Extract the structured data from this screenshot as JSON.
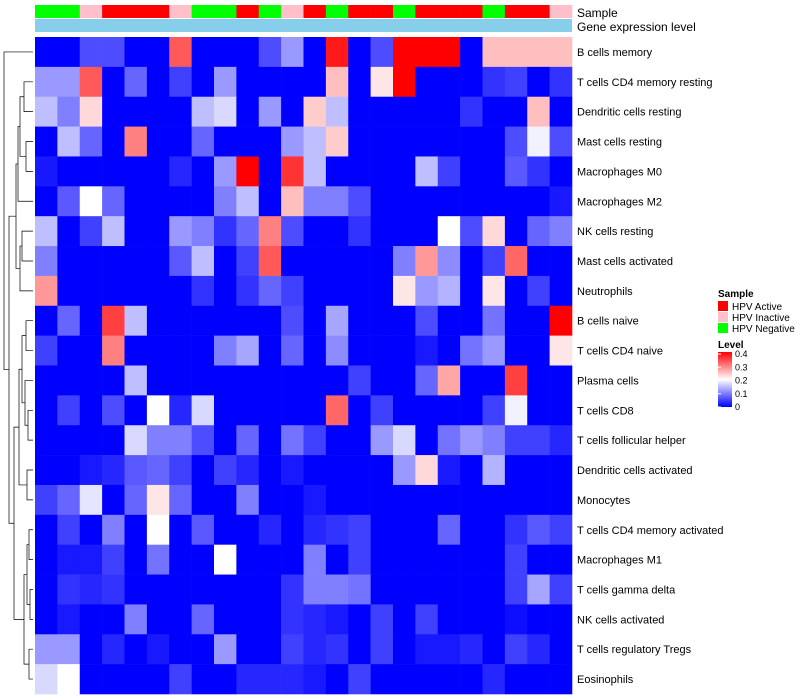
{
  "chart_data": {
    "type": "heatmap",
    "title": "",
    "annotation_rows": {
      "sample_label": "Sample",
      "gene_expression_label": "Gene expression level"
    },
    "sample_legend": {
      "title": "Sample",
      "entries": [
        {
          "label": "HPV Active",
          "color": "#ff0000"
        },
        {
          "label": "HPV Inactive",
          "color": "#ffc0cb"
        },
        {
          "label": "HPV Negative",
          "color": "#00ff00"
        }
      ]
    },
    "level_legend": {
      "title": "Level",
      "min": 0,
      "max": 0.4,
      "ticks": [
        "0.4",
        "0.3",
        "0.2",
        "0.1",
        "0"
      ],
      "colors": [
        "#0000ff",
        "#ffffff",
        "#ff0000"
      ]
    },
    "gene_expression_color": "#87ceeb",
    "column_samples": [
      "Negative",
      "Negative",
      "Inactive",
      "Active",
      "Active",
      "Active",
      "Inactive",
      "Negative",
      "Negative",
      "Active",
      "Negative",
      "Inactive",
      "Active",
      "Negative",
      "Active",
      "Active",
      "Negative",
      "Active",
      "Active",
      "Active",
      "Negative",
      "Active",
      "Active",
      "Inactive"
    ],
    "rows": [
      "B cells memory",
      "T cells CD4 memory resting",
      "Dendritic cells resting",
      "Mast cells resting",
      "Macrophages M0",
      "Macrophages M2",
      "NK cells resting",
      "Mast cells activated",
      "Neutrophils",
      "B cells naive",
      "T cells CD4 naive",
      "Plasma cells",
      "T cells CD8",
      "T cells follicular helper",
      "Dendritic cells activated",
      "Monocytes",
      "T cells CD4 memory activated",
      "Macrophages M1",
      "T cells gamma delta",
      "NK cells activated",
      "T cells regulatory  Tregs",
      "Eosinophils"
    ],
    "values": [
      [
        0,
        0,
        0.06,
        0.06,
        0,
        0,
        0.33,
        0,
        0,
        0,
        0.06,
        0.12,
        0,
        0.38,
        0,
        0.06,
        0.4,
        0.4,
        0.4,
        0,
        0.25,
        0.25,
        0.25,
        0.25
      ],
      [
        0.12,
        0.12,
        0.33,
        0,
        0.08,
        0,
        0.05,
        0,
        0.12,
        0,
        0,
        0,
        0,
        0.25,
        0,
        0.22,
        0.4,
        0,
        0,
        0,
        0.04,
        0.05,
        0,
        0.04
      ],
      [
        0.15,
        0.1,
        0.23,
        0,
        0,
        0,
        0,
        0.15,
        0.17,
        0,
        0.12,
        0,
        0.24,
        0.15,
        0,
        0,
        0,
        0,
        0,
        0.04,
        0,
        0,
        0.25,
        0
      ],
      [
        0,
        0.15,
        0.08,
        0,
        0.3,
        0,
        0,
        0.08,
        0,
        0,
        0,
        0.12,
        0.15,
        0.24,
        0,
        0,
        0,
        0,
        0,
        0,
        0,
        0.06,
        0.19,
        0.06
      ],
      [
        0.02,
        0,
        0,
        0,
        0,
        0,
        0.03,
        0,
        0.12,
        0.4,
        0,
        0.36,
        0.15,
        0,
        0,
        0,
        0,
        0.15,
        0.05,
        0,
        0,
        0.07,
        0.04,
        0
      ],
      [
        0,
        0.07,
        0.2,
        0.08,
        0,
        0,
        0,
        0,
        0.1,
        0.15,
        0,
        0.25,
        0.1,
        0.1,
        0.06,
        0,
        0,
        0,
        0,
        0,
        0,
        0,
        0,
        0.02
      ],
      [
        0.15,
        0,
        0.05,
        0.15,
        0,
        0,
        0.12,
        0.1,
        0.04,
        0.08,
        0.3,
        0.06,
        0,
        0,
        0.04,
        0,
        0,
        0,
        0.2,
        0.06,
        0.23,
        0,
        0.08,
        0.1
      ],
      [
        0.1,
        0,
        0,
        0,
        0,
        0,
        0.07,
        0.15,
        0,
        0.05,
        0.33,
        0,
        0,
        0,
        0,
        0,
        0.1,
        0.28,
        0.11,
        0,
        0.05,
        0.32,
        0,
        0
      ],
      [
        0.28,
        0,
        0,
        0,
        0,
        0,
        0,
        0.04,
        0,
        0.04,
        0.08,
        0.05,
        0,
        0,
        0,
        0,
        0.22,
        0.12,
        0.14,
        0,
        0.22,
        0,
        0.05,
        0
      ],
      [
        0,
        0.08,
        0,
        0.35,
        0.15,
        0,
        0,
        0,
        0,
        0,
        0,
        0.06,
        0,
        0.13,
        0,
        0,
        0,
        0.06,
        0,
        0,
        0.09,
        0,
        0,
        0.4
      ],
      [
        0.05,
        0,
        0,
        0.3,
        0,
        0,
        0,
        0,
        0.1,
        0.13,
        0,
        0.08,
        0,
        0.11,
        0,
        0,
        0,
        0.02,
        0,
        0.09,
        0.12,
        0,
        0,
        0.22
      ],
      [
        0,
        0,
        0,
        0,
        0.15,
        0,
        0,
        0,
        0,
        0,
        0,
        0,
        0,
        0,
        0.05,
        0,
        0,
        0.08,
        0.27,
        0,
        0,
        0.35,
        0,
        0
      ],
      [
        0,
        0.05,
        0,
        0.06,
        0,
        0.2,
        0.03,
        0.17,
        0,
        0,
        0,
        0,
        0,
        0.32,
        0,
        0.05,
        0,
        0,
        0,
        0,
        0.05,
        0.19,
        0,
        0
      ],
      [
        0,
        0,
        0,
        0,
        0.17,
        0.1,
        0.1,
        0.06,
        0,
        0.08,
        0,
        0.09,
        0.05,
        0,
        0,
        0.12,
        0.17,
        0,
        0.09,
        0.12,
        0.1,
        0.05,
        0.05,
        0.03
      ],
      [
        0,
        0,
        0.02,
        0.03,
        0.07,
        0.08,
        0.05,
        0,
        0.05,
        0.03,
        0,
        0.02,
        0,
        0,
        0,
        0,
        0.12,
        0.23,
        0.02,
        0,
        0.14,
        0,
        0,
        0
      ],
      [
        0.05,
        0.08,
        0.18,
        0,
        0.08,
        0.22,
        0.08,
        0,
        0,
        0.1,
        0,
        0,
        0.02,
        0,
        0,
        0,
        0,
        0,
        0,
        0,
        0,
        0,
        0,
        0
      ],
      [
        0,
        0.05,
        0,
        0.1,
        0,
        0.2,
        0,
        0.07,
        0,
        0,
        0.03,
        0,
        0.03,
        0.04,
        0.05,
        0,
        0,
        0,
        0.08,
        0,
        0,
        0.04,
        0.07,
        0.05
      ],
      [
        0,
        0.02,
        0.02,
        0.05,
        0,
        0.09,
        0,
        0,
        0.2,
        0,
        0,
        0,
        0.1,
        0,
        0.05,
        0,
        0,
        0,
        0,
        0,
        0,
        0.05,
        0,
        0
      ],
      [
        0,
        0.04,
        0.03,
        0.04,
        0,
        0,
        0,
        0,
        0,
        0,
        0,
        0.04,
        0.1,
        0.1,
        0.09,
        0,
        0,
        0,
        0,
        0,
        0,
        0.05,
        0.13,
        0.05
      ],
      [
        0,
        0.02,
        0,
        0,
        0.1,
        0,
        0,
        0.08,
        0,
        0,
        0,
        0.04,
        0.03,
        0.02,
        0,
        0.05,
        0,
        0.05,
        0,
        0,
        0,
        0.01,
        0,
        0
      ],
      [
        0.12,
        0.12,
        0,
        0.03,
        0,
        0.02,
        0,
        0,
        0.12,
        0,
        0,
        0.05,
        0.03,
        0.04,
        0,
        0.05,
        0,
        0.02,
        0.02,
        0.03,
        0,
        0.05,
        0.03,
        0
      ],
      [
        0.17,
        0.2,
        0,
        0,
        0,
        0,
        0.05,
        0,
        0,
        0.03,
        0.03,
        0.03,
        0.02,
        0,
        0.05,
        0,
        0,
        0,
        0,
        0,
        0.03,
        0,
        0,
        0
      ]
    ]
  }
}
